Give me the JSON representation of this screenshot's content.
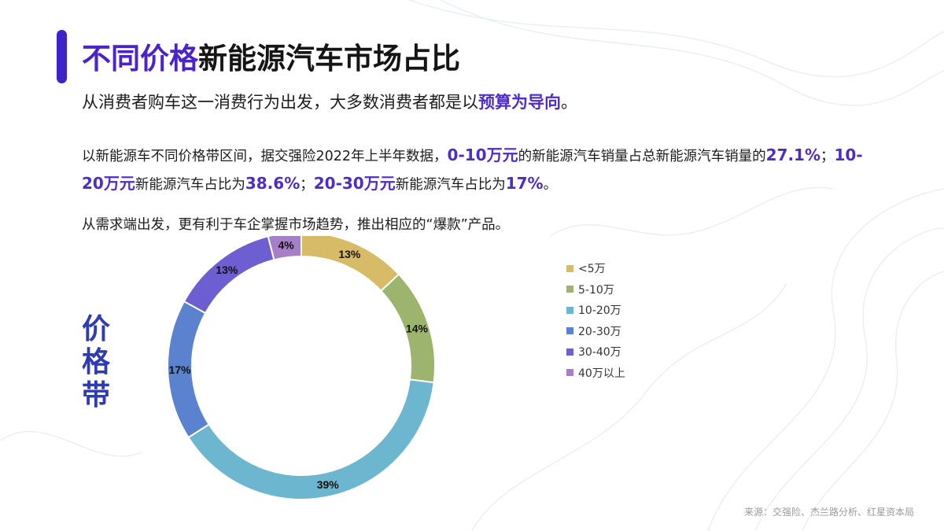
{
  "header": {
    "title_highlight": "不同价格",
    "title_rest": "新能源汽车市场占比"
  },
  "lead": {
    "text": "从消费者购车这一消费行为出发，大多数消费者都是以",
    "highlight": "预算为导向",
    "end": "。"
  },
  "paragraph": {
    "p1": "以新能源车不同价格带区间，据交强险2022年上半年数据，",
    "v1": "0-10万元",
    "p2": "的新能源汽车销量占总新能源汽车销量的",
    "v2": "27.1%",
    "p3": "；",
    "v3": "10-20万元",
    "p4": "新能源汽车占比为",
    "v4": "38.6%",
    "p5": "；",
    "v5": "20-30万元",
    "p6": "新能源汽车占比为",
    "v6": "17%",
    "p7": "。"
  },
  "demand_text": "从需求端出发，更有利于车企掌握市场趋势，推出相应的“爆款”产品。",
  "side_label": "价格带",
  "source": "来源：交强险、杰兰路分析、红星资本局",
  "colors": {
    "accent": "#3d24c8",
    "highlight": "#4f2cc8"
  },
  "chart_data": {
    "type": "pie",
    "variant": "donut",
    "categories": [
      "<5万",
      "5-10万",
      "10-20万",
      "20-30万",
      "30-40万",
      "40万以上"
    ],
    "values": [
      13,
      14,
      39,
      17,
      13,
      4
    ],
    "labels": [
      "13%",
      "14%",
      "39%",
      "17%",
      "13%",
      "4%"
    ],
    "colors": [
      "#d8bb66",
      "#9db46d",
      "#6cb6d0",
      "#5a82cf",
      "#6d5ed1",
      "#a77fc6"
    ],
    "legend_position": "right"
  }
}
